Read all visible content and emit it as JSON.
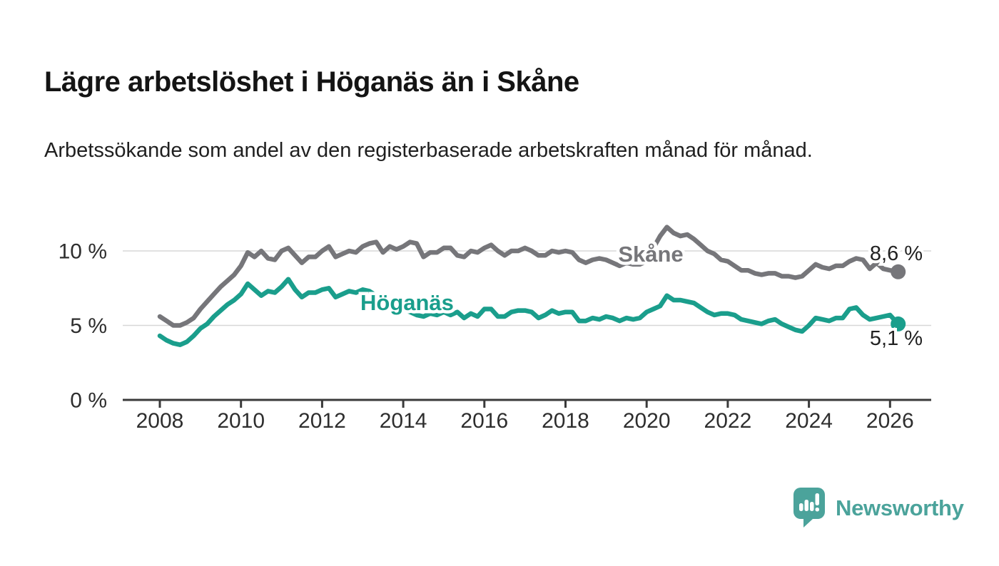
{
  "header": {
    "title": "Lägre arbetslöshet i Höganäs än i Skåne",
    "subtitle": "Arbetssökande som andel av den registerbaserade arbetskraften månad för månad."
  },
  "chart_data": {
    "type": "line",
    "title": "Lägre arbetslöshet i Höganäs än i Skåne",
    "x_start_year": 2008,
    "x_step_months": 2,
    "x_final_year": 2026.2,
    "x_ticks": [
      2008,
      2010,
      2012,
      2014,
      2016,
      2018,
      2020,
      2022,
      2024,
      2026
    ],
    "y_ticks": [
      {
        "value": 0,
        "label": "0 %"
      },
      {
        "value": 5,
        "label": "5 %"
      },
      {
        "value": 10,
        "label": "10 %"
      }
    ],
    "ylim": [
      0,
      12.5
    ],
    "grid": true,
    "legend_position": "inline-labels",
    "colors": {
      "skane_line": "#76767a",
      "hoganas_line": "#1a9e8c",
      "gridline": "#d7d7d7",
      "axis": "#3a3a3a",
      "tick_text": "#2e2e2e",
      "value_text": "#222222"
    },
    "series": [
      {
        "name": "Skåne",
        "color": "#76767a",
        "end_label": "8,6 %",
        "end_value": 8.6,
        "values": [
          5.6,
          5.3,
          5.0,
          5.0,
          5.2,
          5.5,
          6.1,
          6.6,
          7.1,
          7.6,
          8.0,
          8.4,
          9.0,
          9.9,
          9.6,
          10.0,
          9.5,
          9.4,
          10.0,
          10.2,
          9.7,
          9.2,
          9.6,
          9.6,
          10.0,
          10.3,
          9.6,
          9.8,
          10.0,
          9.9,
          10.3,
          10.5,
          10.6,
          9.9,
          10.3,
          10.1,
          10.3,
          10.6,
          10.5,
          9.6,
          9.9,
          9.9,
          10.2,
          10.2,
          9.7,
          9.6,
          10.0,
          9.9,
          10.2,
          10.4,
          10.0,
          9.7,
          10.0,
          10.0,
          10.2,
          10.0,
          9.7,
          9.7,
          10.0,
          9.9,
          10.0,
          9.9,
          9.4,
          9.2,
          9.4,
          9.5,
          9.4,
          9.2,
          9.0,
          9.2,
          9.1,
          9.1,
          9.3,
          10.2,
          11.0,
          11.6,
          11.2,
          11.0,
          11.1,
          10.8,
          10.4,
          10.0,
          9.8,
          9.4,
          9.3,
          9.0,
          8.7,
          8.7,
          8.5,
          8.4,
          8.5,
          8.5,
          8.3,
          8.3,
          8.2,
          8.3,
          8.7,
          9.1,
          8.9,
          8.8,
          9.0,
          9.0,
          9.3,
          9.5,
          9.4,
          8.8,
          9.2,
          8.8,
          8.7,
          8.6
        ]
      },
      {
        "name": "Höganäs",
        "color": "#1a9e8c",
        "end_label": "5,1 %",
        "end_value": 5.1,
        "values": [
          4.3,
          4.0,
          3.8,
          3.7,
          3.9,
          4.3,
          4.8,
          5.1,
          5.6,
          6.0,
          6.4,
          6.7,
          7.1,
          7.8,
          7.4,
          7.0,
          7.3,
          7.2,
          7.6,
          8.1,
          7.4,
          6.9,
          7.2,
          7.2,
          7.4,
          7.5,
          6.9,
          7.1,
          7.3,
          7.2,
          7.4,
          7.3,
          7.0,
          6.6,
          6.4,
          6.2,
          6.1,
          5.9,
          5.7,
          5.6,
          5.8,
          5.7,
          5.9,
          5.7,
          5.9,
          5.5,
          5.8,
          5.6,
          6.1,
          6.1,
          5.6,
          5.6,
          5.9,
          6.0,
          6.0,
          5.9,
          5.5,
          5.7,
          6.0,
          5.8,
          5.9,
          5.9,
          5.3,
          5.3,
          5.5,
          5.4,
          5.6,
          5.5,
          5.3,
          5.5,
          5.4,
          5.5,
          5.9,
          6.1,
          6.3,
          7.0,
          6.7,
          6.7,
          6.6,
          6.5,
          6.2,
          5.9,
          5.7,
          5.8,
          5.8,
          5.7,
          5.4,
          5.3,
          5.2,
          5.1,
          5.3,
          5.4,
          5.1,
          4.9,
          4.7,
          4.6,
          5.0,
          5.5,
          5.4,
          5.3,
          5.5,
          5.5,
          6.1,
          6.2,
          5.7,
          5.4,
          5.5,
          5.6,
          5.7,
          5.1
        ]
      }
    ]
  },
  "branding": {
    "logo_text": "Newsworthy",
    "logo_color": "#4ba39b"
  }
}
